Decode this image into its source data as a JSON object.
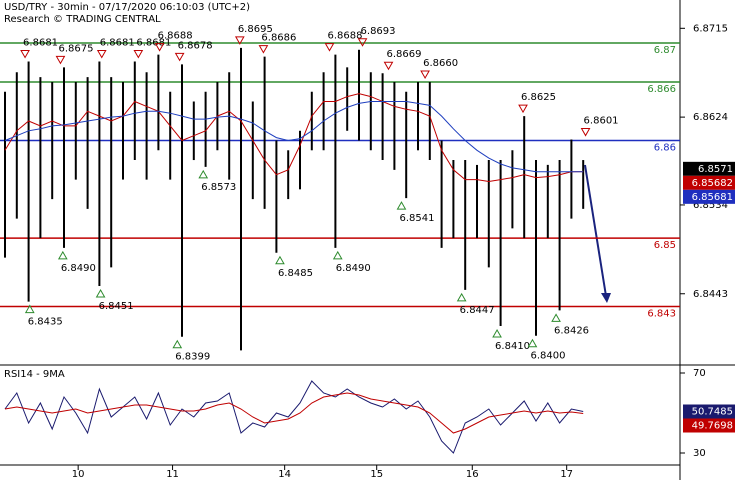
{
  "chart_data": [
    {
      "type": "range-bar",
      "title": "USD/TRY - 30min - 07/17/2020 06:10:03 (UTC+2)",
      "subtitle": "Research © TRADING CENTRAL",
      "x": [
        0,
        1,
        2,
        3,
        4,
        5,
        6,
        7,
        8,
        9,
        10,
        11,
        12,
        13,
        14,
        15,
        16,
        17,
        18,
        19,
        20,
        21,
        22,
        23,
        24,
        25,
        26,
        27,
        28,
        29,
        30,
        31,
        32,
        33,
        34,
        35,
        36,
        37,
        38,
        39,
        40,
        41,
        42,
        43,
        44,
        45,
        46,
        47,
        48,
        49
      ],
      "high": [
        6.865,
        6.867,
        6.8681,
        6.8665,
        6.866,
        6.8675,
        6.866,
        6.8665,
        6.8681,
        6.8665,
        6.866,
        6.8681,
        6.867,
        6.8688,
        6.865,
        6.8678,
        6.864,
        6.865,
        6.866,
        6.867,
        6.8695,
        6.864,
        6.8686,
        6.86,
        6.859,
        6.861,
        6.865,
        6.867,
        6.8688,
        6.8675,
        6.8693,
        6.867,
        6.8669,
        6.866,
        6.865,
        6.866,
        6.866,
        6.86,
        6.858,
        6.858,
        6.8575,
        6.858,
        6.858,
        6.859,
        6.8625,
        6.858,
        6.8575,
        6.858,
        6.8601,
        6.858
      ],
      "low": [
        6.848,
        6.852,
        6.8435,
        6.85,
        6.854,
        6.849,
        6.856,
        6.853,
        6.8451,
        6.847,
        6.856,
        6.858,
        6.856,
        6.859,
        6.856,
        6.8399,
        6.858,
        6.8573,
        6.859,
        6.856,
        6.8385,
        6.854,
        6.853,
        6.8485,
        6.854,
        6.855,
        6.859,
        6.859,
        6.849,
        6.861,
        6.86,
        6.859,
        6.858,
        6.857,
        6.8541,
        6.859,
        6.858,
        6.849,
        6.85,
        6.8447,
        6.85,
        6.847,
        6.841,
        6.851,
        6.85,
        6.84,
        6.85,
        6.8426,
        6.852,
        6.853
      ],
      "series": [
        {
          "color": "#c00000",
          "values": [
            6.859,
            6.861,
            6.862,
            6.8615,
            6.862,
            6.8615,
            6.8615,
            6.863,
            6.8625,
            6.862,
            6.8625,
            6.864,
            6.8635,
            6.863,
            6.8615,
            6.86,
            6.8605,
            6.861,
            6.8625,
            6.863,
            6.862,
            6.86,
            6.858,
            6.8565,
            6.857,
            6.8595,
            6.8625,
            6.864,
            6.864,
            6.8645,
            6.8648,
            6.8645,
            6.864,
            6.8635,
            6.8632,
            6.863,
            6.8625,
            6.859,
            6.857,
            6.856,
            6.856,
            6.8558,
            6.856,
            6.8562,
            6.8565,
            6.8562,
            6.8563,
            6.8565,
            6.8568,
            6.85682
          ]
        },
        {
          "color": "#1f3fbf",
          "values": [
            6.86,
            6.8605,
            6.861,
            6.8612,
            6.8615,
            6.8616,
            6.8618,
            6.862,
            6.8622,
            6.8624,
            6.8625,
            6.8628,
            6.863,
            6.863,
            6.8628,
            6.8625,
            6.8622,
            6.8622,
            6.8624,
            6.8625,
            6.8622,
            6.8618,
            6.861,
            6.8603,
            6.86,
            6.8602,
            6.861,
            6.862,
            6.8628,
            6.8634,
            6.8638,
            6.864,
            6.864,
            6.864,
            6.864,
            6.8638,
            6.8636,
            6.8625,
            6.8612,
            6.86,
            6.859,
            6.8582,
            6.8576,
            6.8572,
            6.857,
            6.8568,
            6.8568,
            6.8568,
            6.8568,
            6.85681
          ]
        }
      ],
      "last_price": 6.8571,
      "levels": [
        {
          "value": 6.87,
          "color": "#2e8b2e"
        },
        {
          "value": 6.866,
          "color": "#2e8b2e"
        },
        {
          "value": 6.86,
          "color": "#1f2fbf"
        },
        {
          "value": 6.85,
          "color": "#c00000"
        },
        {
          "value": 6.843,
          "color": "#c00000"
        }
      ],
      "high_marks": {
        "x": [
          1.7,
          4.7,
          8.2,
          11.3,
          13.1,
          14.8,
          19.9,
          21.9,
          27.5,
          30.3,
          32.5,
          35.6,
          43.9,
          49.2
        ],
        "values": [
          6.8681,
          6.8675,
          6.8681,
          6.8681,
          6.8688,
          6.8678,
          6.8695,
          6.8686,
          6.8688,
          6.8693,
          6.8669,
          6.866,
          6.8625,
          6.8601
        ],
        "value_labels": [
          "6.8681",
          "6.8675",
          "6.8681",
          "6.8681",
          "6.8688",
          "6.8678",
          "6.8695",
          "6.8686",
          "6.8688",
          "6.8693",
          "6.8669",
          "6.8660",
          "6.8625",
          "6.8601"
        ]
      },
      "low_marks": {
        "x": [
          2.1,
          4.9,
          8.1,
          14.6,
          16.8,
          23.3,
          28.2,
          33.6,
          38.7,
          41.7,
          44.7,
          46.7
        ],
        "values": [
          6.8435,
          6.849,
          6.8451,
          6.8399,
          6.8573,
          6.8485,
          6.849,
          6.8541,
          6.8447,
          6.841,
          6.84,
          6.8426
        ],
        "value_labels": [
          "6.8435",
          "6.8490",
          "6.8451",
          "6.8399",
          "6.8573",
          "6.8485",
          "6.8490",
          "6.8541",
          "6.8447",
          "6.8410",
          "6.8400",
          "6.8426"
        ]
      },
      "xlim": [
        0,
        50
      ],
      "xticks": [
        {
          "value": 6.2,
          "label": "10"
        },
        {
          "value": 14.2,
          "label": "11"
        },
        {
          "value": 23.7,
          "label": "14"
        },
        {
          "value": 31.5,
          "label": "15"
        },
        {
          "value": 39.6,
          "label": "16"
        },
        {
          "value": 47.6,
          "label": "17"
        }
      ],
      "ylim": [
        6.837,
        6.8744
      ],
      "yticks": [
        6.8715,
        6.8624,
        6.8534,
        6.8443
      ]
    },
    {
      "type": "line",
      "title": "RSI14 - 9MA",
      "x": [
        0,
        1,
        2,
        3,
        4,
        5,
        6,
        7,
        8,
        9,
        10,
        11,
        12,
        13,
        14,
        15,
        16,
        17,
        18,
        19,
        20,
        21,
        22,
        23,
        24,
        25,
        26,
        27,
        28,
        29,
        30,
        31,
        32,
        33,
        34,
        35,
        36,
        37,
        38,
        39,
        40,
        41,
        42,
        43,
        44,
        45,
        46,
        47,
        48,
        49
      ],
      "series": [
        {
          "color": "#1a1a6e",
          "values": [
            52,
            60,
            45,
            55,
            42,
            58,
            50,
            40,
            62,
            48,
            53,
            58,
            47,
            60,
            44,
            52,
            48,
            55,
            56,
            60,
            40,
            45,
            43,
            50,
            48,
            55,
            66,
            60,
            58,
            62,
            58,
            55,
            53,
            57,
            52,
            56,
            48,
            36,
            30,
            45,
            48,
            52,
            44,
            50,
            56,
            46,
            55,
            45,
            52,
            50.7485
          ]
        },
        {
          "color": "#c00000",
          "values": [
            52,
            53,
            52,
            51,
            50,
            51,
            52,
            50,
            51,
            52,
            53,
            54,
            54,
            53,
            52,
            51,
            51,
            52,
            54,
            55,
            52,
            48,
            45,
            46,
            47,
            50,
            55,
            58,
            59,
            60,
            59,
            57,
            56,
            55,
            54,
            53,
            50,
            45,
            40,
            42,
            45,
            48,
            49,
            50,
            51,
            50,
            51,
            50,
            50.5,
            49.7698
          ]
        }
      ],
      "xlim": [
        0,
        50
      ],
      "ylim": [
        24,
        74
      ],
      "yticks": [
        70,
        30
      ]
    }
  ]
}
